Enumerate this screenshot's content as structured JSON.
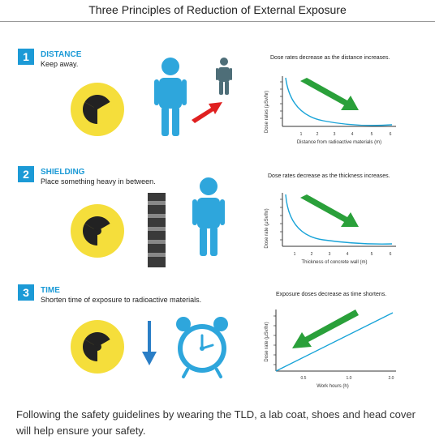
{
  "title": "Three Principles of Reduction of External Exposure",
  "colors": {
    "accent": "#1c9ad6",
    "hazard": "#f5de3b",
    "arrow_green": "#2aa03a",
    "arrow_red": "#e02020",
    "curve": "#1aa4d8",
    "person": "#2ea6dc"
  },
  "sections": [
    {
      "number": "1",
      "heading": "DISTANCE",
      "subtitle": "Keep away.",
      "icons": [
        "radiation-icon",
        "person-icon",
        "red-arrow-icon",
        "small-person-icon"
      ],
      "chart_title": "Dose rates decrease as the distance increases.",
      "ylabel": "Dose rates (μSv/hr)",
      "xlabel": "Distance from radioactive materials (m)",
      "x_ticks": [
        "1",
        "2",
        "3",
        "4",
        "5",
        "6"
      ]
    },
    {
      "number": "2",
      "heading": "SHIELDING",
      "subtitle": "Place something heavy in between.",
      "icons": [
        "radiation-icon",
        "concrete-wall-icon",
        "person-icon"
      ],
      "chart_title": "Dose rates decrease as the thickness increases.",
      "ylabel": "Dose rate (μSv/hr)",
      "xlabel": "Thickness of concrete wall (m)",
      "x_ticks": [
        "1",
        "2",
        "3",
        "4",
        "5",
        "6"
      ]
    },
    {
      "number": "3",
      "heading": "TIME",
      "subtitle": "Shorten time of exposure to radioactive materials.",
      "icons": [
        "radiation-icon",
        "down-arrow-icon",
        "alarm-clock-icon"
      ],
      "chart_title": "Exposure doses decrease as time shortens.",
      "ylabel": "Dose rate (μSv/hr)",
      "xlabel": "Work hours (h)",
      "x_ticks": [
        "0.5",
        "1.0",
        "2.0"
      ]
    }
  ],
  "footer": "Following the safety guidelines by wearing the TLD, a lab coat, shoes and head cover will help ensure your safety."
}
